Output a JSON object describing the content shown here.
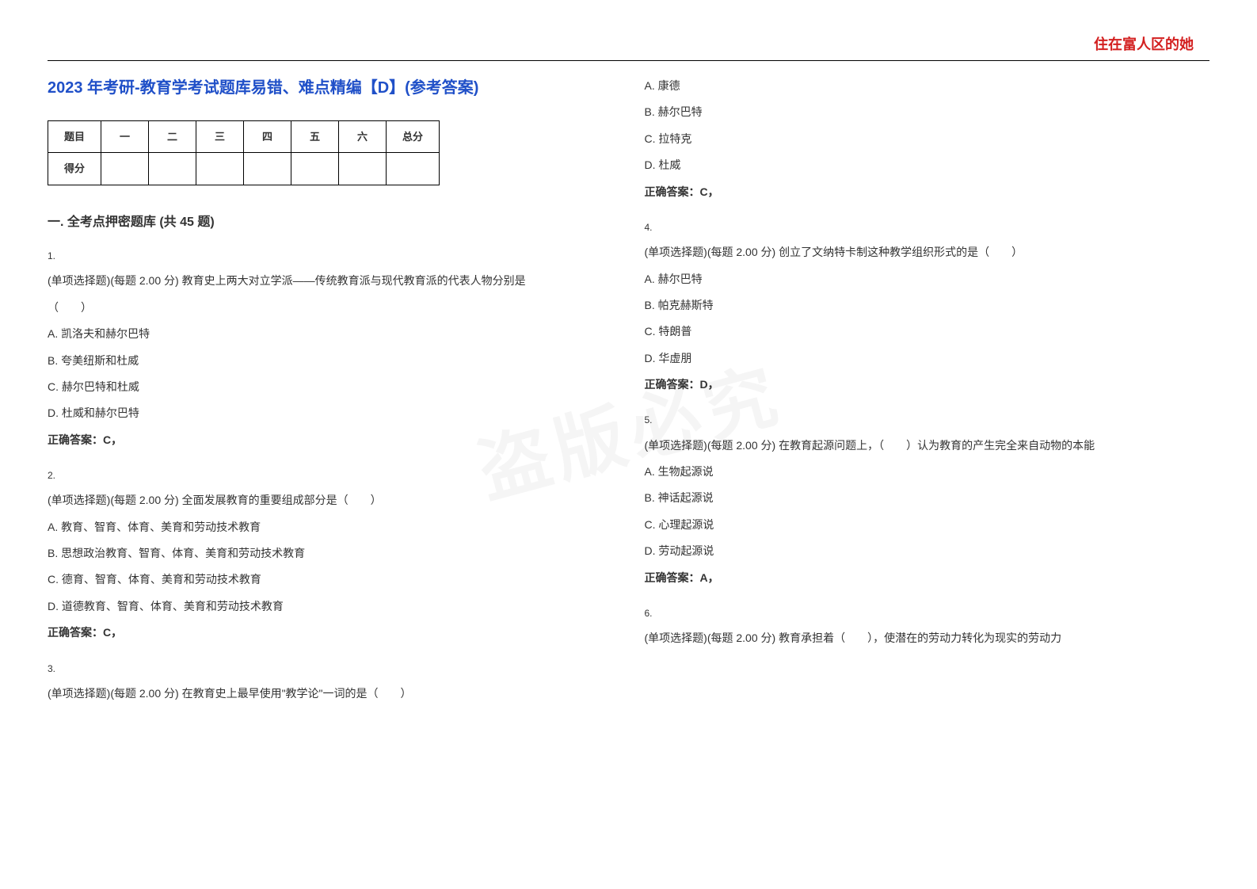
{
  "header_right": "住在富人区的她",
  "main_title": "2023 年考研-教育学考试题库易错、难点精编【D】(参考答案)",
  "score_table": {
    "row1": [
      "题目",
      "一",
      "二",
      "三",
      "四",
      "五",
      "六",
      "总分"
    ],
    "row2_label": "得分"
  },
  "section_title": "一. 全考点押密题库 (共 45 题)",
  "watermark": "盗版必究",
  "col_left": {
    "q1": {
      "num": "1.",
      "text": "(单项选择题)(每题 2.00 分) 教育史上两大对立学派——传统教育派与现代教育派的代表人物分别是",
      "blank": "（　　）",
      "a": "A. 凯洛夫和赫尔巴特",
      "b": "B. 夸美纽斯和杜威",
      "c": "C. 赫尔巴特和杜威",
      "d": "D. 杜威和赫尔巴特",
      "ans": "正确答案：C，"
    },
    "q2": {
      "num": "2.",
      "text": "(单项选择题)(每题 2.00 分) 全面发展教育的重要组成部分是（　　）",
      "a": "A. 教育、智育、体育、美育和劳动技术教育",
      "b": "B. 思想政治教育、智育、体育、美育和劳动技术教育",
      "c": "C. 德育、智育、体育、美育和劳动技术教育",
      "d": "D. 道德教育、智育、体育、美育和劳动技术教育",
      "ans": "正确答案：C，"
    },
    "q3": {
      "num": "3.",
      "text": "(单项选择题)(每题 2.00 分) 在教育史上最早使用\"教学论\"一词的是（　　）"
    }
  },
  "col_right": {
    "q3opts": {
      "a": "A. 康德",
      "b": "B. 赫尔巴特",
      "c": "C. 拉特克",
      "d": "D. 杜威",
      "ans": "正确答案：C，"
    },
    "q4": {
      "num": "4.",
      "text": "(单项选择题)(每题 2.00 分) 创立了文纳特卡制这种教学组织形式的是（　　）",
      "a": "A. 赫尔巴特",
      "b": "B. 帕克赫斯特",
      "c": "C. 特朗普",
      "d": "D. 华虚朋",
      "ans": "正确答案：D，"
    },
    "q5": {
      "num": "5.",
      "text": "(单项选择题)(每题 2.00 分) 在教育起源问题上，（　　）认为教育的产生完全来自动物的本能",
      "a": "A. 生物起源说",
      "b": "B. 神话起源说",
      "c": "C. 心理起源说",
      "d": "D. 劳动起源说",
      "ans": "正确答案：A，"
    },
    "q6": {
      "num": "6.",
      "text": "(单项选择题)(每题 2.00 分) 教育承担着（　　），使潜在的劳动力转化为现实的劳动力"
    }
  }
}
